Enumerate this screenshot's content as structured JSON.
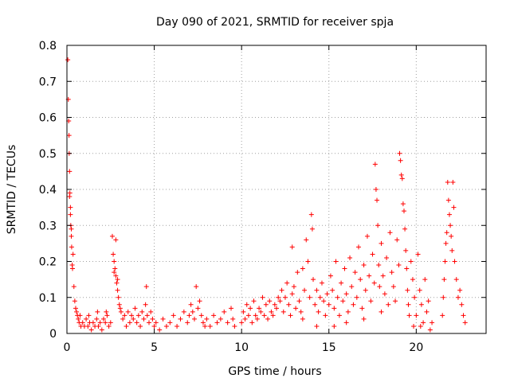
{
  "chart_data": {
    "type": "scatter",
    "title": "Day 090 of 2021, SRMTID for receiver spja",
    "xlabel": "GPS time / hours",
    "ylabel": "SRMTID / TECUs",
    "xlim": [
      0,
      24
    ],
    "ylim": [
      0,
      0.8
    ],
    "x_ticks": [
      0,
      5,
      10,
      15,
      20
    ],
    "x_tick_labels": [
      "0",
      "5",
      "10",
      "15",
      "20"
    ],
    "y_ticks": [
      0,
      0.1,
      0.2,
      0.3,
      0.4,
      0.5,
      0.6,
      0.7,
      0.8
    ],
    "y_tick_labels": [
      "0",
      "0.1",
      "0.2",
      "0.3",
      "0.4",
      "0.5",
      "0.6",
      "0.7",
      "0.8"
    ],
    "grid": true,
    "marker": "+",
    "marker_color": "#ff0000",
    "series": [
      {
        "name": "SRMTID",
        "points": [
          [
            0.05,
            0.76
          ],
          [
            0.08,
            0.65
          ],
          [
            0.1,
            0.59
          ],
          [
            0.12,
            0.55
          ],
          [
            0.13,
            0.5
          ],
          [
            0.15,
            0.45
          ],
          [
            0.17,
            0.39
          ],
          [
            0.2,
            0.35
          ],
          [
            0.22,
            0.3
          ],
          [
            0.25,
            0.27
          ],
          [
            0.27,
            0.24
          ],
          [
            0.3,
            0.19
          ],
          [
            0.32,
            0.18
          ],
          [
            0.35,
            0.22
          ],
          [
            0.15,
            0.38
          ],
          [
            0.2,
            0.33
          ],
          [
            0.25,
            0.29
          ],
          [
            0.4,
            0.13
          ],
          [
            0.45,
            0.09
          ],
          [
            0.5,
            0.07
          ],
          [
            0.55,
            0.06
          ],
          [
            0.6,
            0.05
          ],
          [
            0.65,
            0.04
          ],
          [
            0.7,
            0.03
          ],
          [
            0.75,
            0.05
          ],
          [
            0.8,
            0.02
          ],
          [
            0.9,
            0.03
          ],
          [
            1.0,
            0.02
          ],
          [
            1.1,
            0.04
          ],
          [
            1.2,
            0.02
          ],
          [
            1.3,
            0.03
          ],
          [
            1.4,
            0.01
          ],
          [
            1.5,
            0.03
          ],
          [
            1.6,
            0.02
          ],
          [
            1.7,
            0.04
          ],
          [
            1.8,
            0.02
          ],
          [
            1.9,
            0.03
          ],
          [
            2.0,
            0.01
          ],
          [
            2.1,
            0.04
          ],
          [
            2.2,
            0.03
          ],
          [
            2.3,
            0.05
          ],
          [
            2.4,
            0.02
          ],
          [
            2.5,
            0.03
          ],
          [
            1.25,
            0.05
          ],
          [
            1.75,
            0.06
          ],
          [
            2.25,
            0.06
          ],
          [
            2.6,
            0.27
          ],
          [
            2.65,
            0.22
          ],
          [
            2.7,
            0.2
          ],
          [
            2.75,
            0.18
          ],
          [
            2.8,
            0.16
          ],
          [
            2.85,
            0.14
          ],
          [
            2.9,
            0.12
          ],
          [
            2.95,
            0.1
          ],
          [
            3.0,
            0.08
          ],
          [
            2.8,
            0.26
          ],
          [
            2.7,
            0.17
          ],
          [
            2.9,
            0.15
          ],
          [
            3.05,
            0.07
          ],
          [
            3.1,
            0.06
          ],
          [
            3.2,
            0.04
          ],
          [
            3.3,
            0.05
          ],
          [
            3.4,
            0.02
          ],
          [
            3.5,
            0.06
          ],
          [
            3.6,
            0.03
          ],
          [
            3.7,
            0.05
          ],
          [
            3.8,
            0.04
          ],
          [
            3.9,
            0.07
          ],
          [
            4.0,
            0.03
          ],
          [
            4.1,
            0.05
          ],
          [
            4.2,
            0.02
          ],
          [
            4.3,
            0.06
          ],
          [
            4.4,
            0.04
          ],
          [
            4.5,
            0.08
          ],
          [
            4.55,
            0.13
          ],
          [
            4.6,
            0.05
          ],
          [
            4.7,
            0.03
          ],
          [
            4.8,
            0.06
          ],
          [
            4.9,
            0.04
          ],
          [
            5.0,
            0.02
          ],
          [
            5.1,
            0.03
          ],
          [
            5.3,
            0.01
          ],
          [
            5.5,
            0.04
          ],
          [
            5.7,
            0.02
          ],
          [
            5.9,
            0.03
          ],
          [
            6.1,
            0.05
          ],
          [
            6.3,
            0.02
          ],
          [
            6.5,
            0.04
          ],
          [
            6.7,
            0.06
          ],
          [
            6.9,
            0.03
          ],
          [
            7.0,
            0.05
          ],
          [
            7.1,
            0.08
          ],
          [
            7.2,
            0.06
          ],
          [
            7.3,
            0.04
          ],
          [
            7.4,
            0.13
          ],
          [
            7.5,
            0.07
          ],
          [
            7.6,
            0.09
          ],
          [
            7.7,
            0.05
          ],
          [
            7.8,
            0.03
          ],
          [
            7.9,
            0.02
          ],
          [
            8.0,
            0.04
          ],
          [
            8.2,
            0.02
          ],
          [
            8.4,
            0.05
          ],
          [
            8.6,
            0.03
          ],
          [
            8.8,
            0.04
          ],
          [
            9.0,
            0.06
          ],
          [
            9.2,
            0.03
          ],
          [
            9.4,
            0.07
          ],
          [
            9.5,
            0.04
          ],
          [
            9.6,
            0.02
          ],
          [
            10.0,
            0.03
          ],
          [
            10.1,
            0.06
          ],
          [
            10.2,
            0.04
          ],
          [
            10.3,
            0.08
          ],
          [
            10.4,
            0.05
          ],
          [
            10.5,
            0.07
          ],
          [
            10.6,
            0.03
          ],
          [
            10.7,
            0.09
          ],
          [
            10.8,
            0.05
          ],
          [
            10.9,
            0.04
          ],
          [
            11.0,
            0.07
          ],
          [
            11.1,
            0.06
          ],
          [
            11.2,
            0.1
          ],
          [
            11.3,
            0.05
          ],
          [
            11.4,
            0.08
          ],
          [
            11.5,
            0.04
          ],
          [
            11.6,
            0.09
          ],
          [
            11.7,
            0.06
          ],
          [
            11.8,
            0.05
          ],
          [
            11.9,
            0.08
          ],
          [
            12.0,
            0.07
          ],
          [
            12.1,
            0.1
          ],
          [
            12.2,
            0.09
          ],
          [
            12.3,
            0.12
          ],
          [
            12.4,
            0.06
          ],
          [
            12.5,
            0.1
          ],
          [
            12.6,
            0.14
          ],
          [
            12.7,
            0.08
          ],
          [
            12.8,
            0.05
          ],
          [
            12.9,
            0.11
          ],
          [
            13.0,
            0.13
          ],
          [
            13.1,
            0.07
          ],
          [
            13.2,
            0.17
          ],
          [
            13.3,
            0.09
          ],
          [
            13.4,
            0.06
          ],
          [
            13.5,
            0.18
          ],
          [
            13.6,
            0.12
          ],
          [
            13.7,
            0.26
          ],
          [
            13.8,
            0.2
          ],
          [
            13.9,
            0.1
          ],
          [
            14.0,
            0.33
          ],
          [
            14.05,
            0.29
          ],
          [
            14.1,
            0.15
          ],
          [
            14.2,
            0.08
          ],
          [
            14.3,
            0.12
          ],
          [
            14.4,
            0.06
          ],
          [
            14.5,
            0.1
          ],
          [
            14.6,
            0.14
          ],
          [
            14.7,
            0.09
          ],
          [
            14.8,
            0.05
          ],
          [
            14.9,
            0.11
          ],
          [
            15.0,
            0.08
          ],
          [
            12.9,
            0.24
          ],
          [
            13.5,
            0.04
          ],
          [
            14.3,
            0.02
          ],
          [
            15.1,
            0.16
          ],
          [
            15.2,
            0.12
          ],
          [
            15.3,
            0.07
          ],
          [
            15.4,
            0.2
          ],
          [
            15.5,
            0.1
          ],
          [
            15.6,
            0.05
          ],
          [
            15.7,
            0.14
          ],
          [
            15.8,
            0.09
          ],
          [
            15.9,
            0.18
          ],
          [
            16.0,
            0.11
          ],
          [
            16.1,
            0.06
          ],
          [
            16.2,
            0.21
          ],
          [
            16.3,
            0.13
          ],
          [
            16.4,
            0.08
          ],
          [
            16.5,
            0.17
          ],
          [
            16.6,
            0.1
          ],
          [
            16.7,
            0.24
          ],
          [
            16.8,
            0.15
          ],
          [
            16.9,
            0.07
          ],
          [
            17.0,
            0.19
          ],
          [
            17.1,
            0.12
          ],
          [
            17.2,
            0.27
          ],
          [
            17.3,
            0.16
          ],
          [
            17.4,
            0.09
          ],
          [
            17.5,
            0.22
          ],
          [
            17.6,
            0.14
          ],
          [
            17.65,
            0.47
          ],
          [
            17.7,
            0.4
          ],
          [
            17.75,
            0.37
          ],
          [
            17.8,
            0.3
          ],
          [
            17.85,
            0.19
          ],
          [
            17.9,
            0.13
          ],
          [
            18.0,
            0.25
          ],
          [
            18.1,
            0.16
          ],
          [
            18.2,
            0.11
          ],
          [
            18.3,
            0.21
          ],
          [
            18.4,
            0.08
          ],
          [
            18.5,
            0.28
          ],
          [
            18.6,
            0.17
          ],
          [
            18.7,
            0.13
          ],
          [
            18.8,
            0.09
          ],
          [
            18.9,
            0.26
          ],
          [
            19.0,
            0.19
          ],
          [
            15.3,
            0.02
          ],
          [
            16.0,
            0.03
          ],
          [
            17.0,
            0.04
          ],
          [
            18.0,
            0.06
          ],
          [
            19.05,
            0.5
          ],
          [
            19.1,
            0.48
          ],
          [
            19.15,
            0.44
          ],
          [
            19.2,
            0.43
          ],
          [
            19.25,
            0.36
          ],
          [
            19.3,
            0.34
          ],
          [
            19.35,
            0.29
          ],
          [
            19.4,
            0.23
          ],
          [
            19.45,
            0.18
          ],
          [
            19.5,
            0.12
          ],
          [
            19.55,
            0.08
          ],
          [
            19.6,
            0.05
          ],
          [
            19.7,
            0.2
          ],
          [
            19.8,
            0.15
          ],
          [
            19.9,
            0.1
          ],
          [
            20.0,
            0.05
          ],
          [
            20.1,
            0.22
          ],
          [
            20.2,
            0.12
          ],
          [
            20.3,
            0.08
          ],
          [
            20.4,
            0.03
          ],
          [
            20.5,
            0.15
          ],
          [
            20.6,
            0.06
          ],
          [
            20.7,
            0.09
          ],
          [
            20.8,
            0.01
          ],
          [
            20.9,
            0.03
          ],
          [
            19.85,
            0.02
          ],
          [
            20.25,
            0.02
          ],
          [
            21.5,
            0.05
          ],
          [
            21.55,
            0.1
          ],
          [
            21.6,
            0.15
          ],
          [
            21.65,
            0.2
          ],
          [
            21.7,
            0.25
          ],
          [
            21.75,
            0.28
          ],
          [
            21.8,
            0.42
          ],
          [
            21.85,
            0.37
          ],
          [
            21.9,
            0.33
          ],
          [
            21.95,
            0.3
          ],
          [
            22.0,
            0.27
          ],
          [
            22.05,
            0.23
          ],
          [
            22.1,
            0.42
          ],
          [
            22.15,
            0.35
          ],
          [
            22.2,
            0.2
          ],
          [
            22.3,
            0.15
          ],
          [
            22.4,
            0.1
          ],
          [
            22.5,
            0.12
          ],
          [
            22.6,
            0.08
          ],
          [
            22.7,
            0.05
          ],
          [
            22.8,
            0.03
          ]
        ]
      }
    ]
  }
}
